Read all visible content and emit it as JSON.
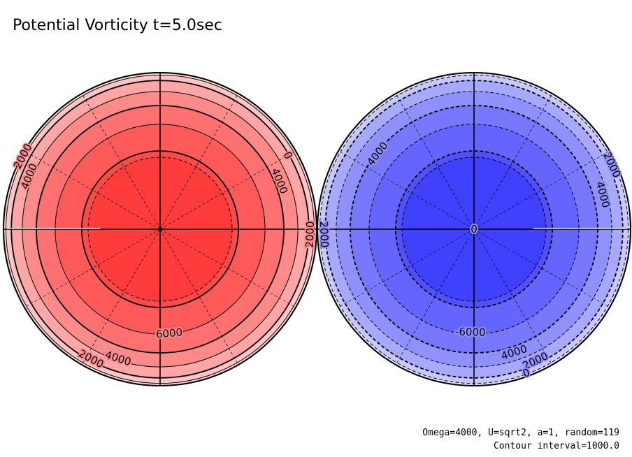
{
  "title": "Potential Vorticity t=5.0sec",
  "footer": {
    "line1": "Omega=4000, U=sqrt2, a=1, random=119",
    "line2": "Contour interval=1000.0"
  },
  "chart_data": [
    {
      "type": "contour",
      "projection": "polar",
      "hemisphere": "north",
      "fill_color": "#ff4444",
      "levels": [
        0,
        1000,
        2000,
        3000,
        4000,
        5000,
        6000,
        7000
      ],
      "level_colors": [
        "#ffe0e0",
        "#ffc4c4",
        "#ffa6a6",
        "#ff8a8a",
        "#ff7070",
        "#ff5a5a",
        "#ff4a4a",
        "#ff3c3c"
      ],
      "labels": [
        {
          "text": "2000",
          "angle": 208,
          "radius": 0.99
        },
        {
          "text": "4000",
          "angle": 202,
          "radius": 0.9
        },
        {
          "text": "0",
          "angle": 330,
          "radius": 0.94
        },
        {
          "text": "4000",
          "angle": 338,
          "radius": 0.82
        },
        {
          "text": "2000",
          "angle": 2,
          "radius": 0.96
        },
        {
          "text": "6000",
          "angle": 85,
          "radius": 0.67
        },
        {
          "text": "4000",
          "angle": 108,
          "radius": 0.87
        },
        {
          "text": "2000",
          "angle": 118,
          "radius": 0.94
        }
      ]
    },
    {
      "type": "contour",
      "projection": "polar",
      "hemisphere": "south",
      "fill_color": "#4444ff",
      "levels": [
        -7000,
        -6000,
        -5000,
        -4000,
        -3000,
        -2000,
        -1000,
        0
      ],
      "level_colors": [
        "#4040ff",
        "#5050ff",
        "#6464ff",
        "#7878ff",
        "#9090ff",
        "#a8a8ff",
        "#c8c8ff",
        "#e2e2ff"
      ],
      "labels": [
        {
          "text": "4000",
          "angle": 218,
          "radius": 0.78
        },
        {
          "text": "2000",
          "angle": 178,
          "radius": 0.96
        },
        {
          "text": "2000",
          "angle": 335,
          "radius": 0.97
        },
        {
          "text": "4000",
          "angle": 345,
          "radius": 0.85
        },
        {
          "text": "0",
          "angle": 95,
          "radius": 0.002
        },
        {
          "text": "-6000",
          "angle": 92,
          "radius": 0.66
        },
        {
          "text": "4000",
          "angle": 72,
          "radius": 0.83
        },
        {
          "text": "2000",
          "angle": 65,
          "radius": 0.93
        },
        {
          "text": "0",
          "angle": 70,
          "radius": 0.98
        }
      ]
    }
  ]
}
